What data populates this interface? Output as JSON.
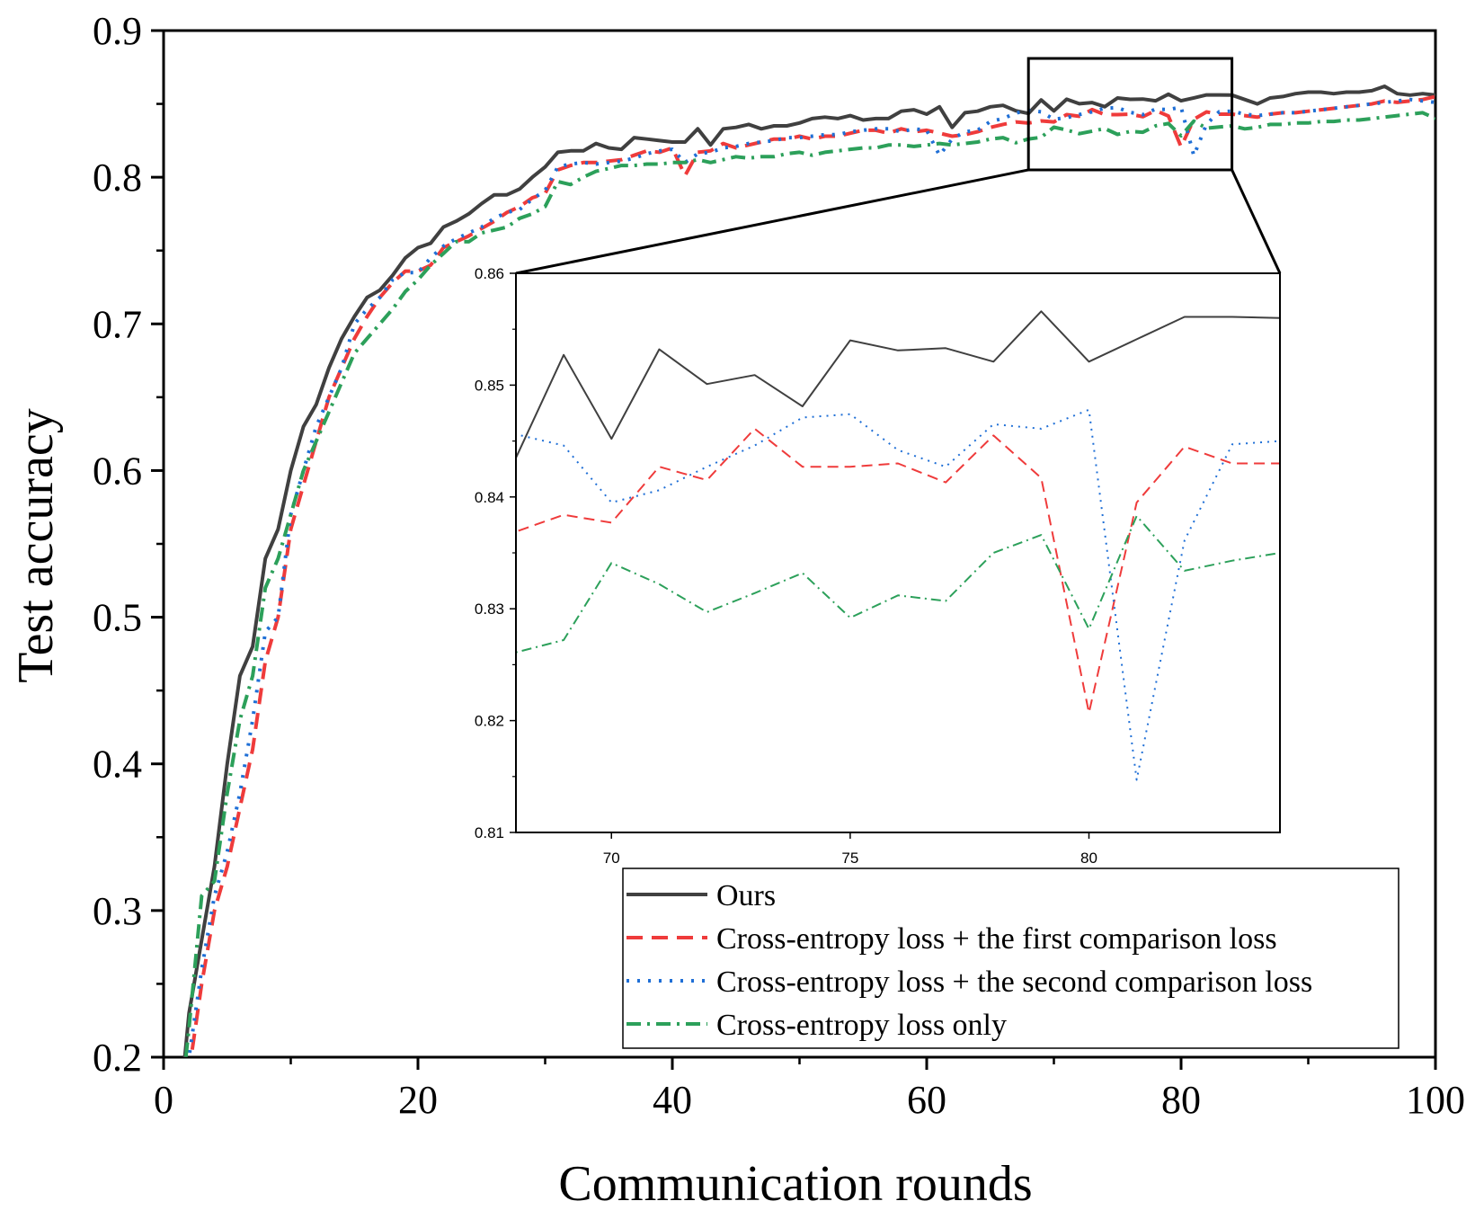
{
  "chart_data": {
    "type": "line",
    "xlabel": "Communication rounds",
    "ylabel": "Test accuracy",
    "xlim": [
      0,
      100
    ],
    "ylim": [
      0.2,
      0.9
    ],
    "x_ticks": [
      0,
      20,
      40,
      60,
      80,
      100
    ],
    "y_ticks": [
      0.2,
      0.3,
      0.4,
      0.5,
      0.6,
      0.7,
      0.8,
      0.9
    ],
    "x_tick_labels": [
      "0",
      "20",
      "40",
      "60",
      "80",
      "100"
    ],
    "y_tick_labels": [
      "0.2",
      "0.3",
      "0.4",
      "0.5",
      "0.6",
      "0.7",
      "0.8",
      "0.9"
    ],
    "grid": false,
    "legend_position": "bottom-right",
    "series": [
      {
        "name": "Ours",
        "color": "#404040",
        "style": "solid",
        "x": [
          1,
          2,
          3,
          4,
          5,
          6,
          7,
          8,
          9,
          10,
          11,
          12,
          13,
          14,
          15,
          16,
          17,
          18,
          19,
          20,
          21,
          22,
          23,
          24,
          25,
          26,
          27,
          28,
          29,
          30,
          31,
          32,
          33,
          34,
          35,
          36,
          37,
          38,
          39,
          40,
          41,
          42,
          43,
          44,
          45,
          46,
          47,
          48,
          49,
          50,
          51,
          52,
          53,
          54,
          55,
          56,
          57,
          58,
          59,
          60,
          61,
          62,
          63,
          64,
          65,
          66,
          67,
          68,
          69,
          70,
          71,
          72,
          73,
          74,
          75,
          76,
          77,
          78,
          79,
          80,
          81,
          82,
          83,
          84,
          85,
          86,
          87,
          88,
          89,
          90,
          91,
          92,
          93,
          94,
          95,
          96,
          97,
          98,
          99,
          100
        ],
        "values": [
          0.14,
          0.23,
          0.28,
          0.33,
          0.4,
          0.46,
          0.48,
          0.54,
          0.56,
          0.6,
          0.63,
          0.645,
          0.67,
          0.69,
          0.705,
          0.718,
          0.723,
          0.733,
          0.745,
          0.752,
          0.755,
          0.766,
          0.77,
          0.775,
          0.782,
          0.788,
          0.788,
          0.792,
          0.8,
          0.807,
          0.817,
          0.818,
          0.818,
          0.823,
          0.82,
          0.819,
          0.827,
          0.826,
          0.825,
          0.824,
          0.824,
          0.833,
          0.822,
          0.833,
          0.834,
          0.836,
          0.833,
          0.835,
          0.835,
          0.837,
          0.84,
          0.841,
          0.84,
          0.842,
          0.839,
          0.84,
          0.84,
          0.845,
          0.846,
          0.843,
          0.848,
          0.834,
          0.844,
          0.845,
          0.848,
          0.849,
          0.8453,
          0.8435,
          0.8527,
          0.8452,
          0.8532,
          0.8501,
          0.8509,
          0.8481,
          0.854,
          0.8531,
          0.8533,
          0.8521,
          0.8566,
          0.8521,
          0.8541,
          0.8561,
          0.8561,
          0.856,
          0.853,
          0.85,
          0.854,
          0.855,
          0.857,
          0.858,
          0.858,
          0.857,
          0.858,
          0.858,
          0.859,
          0.862,
          0.857,
          0.856,
          0.857,
          0.856
        ]
      },
      {
        "name": "Cross-entropy loss + the first comparison loss",
        "color": "#ef3b3b",
        "style": "dashed",
        "x": [
          1,
          2,
          3,
          4,
          5,
          6,
          7,
          8,
          9,
          10,
          11,
          12,
          13,
          14,
          15,
          16,
          17,
          18,
          19,
          20,
          21,
          22,
          23,
          24,
          25,
          26,
          27,
          28,
          29,
          30,
          31,
          32,
          33,
          34,
          35,
          36,
          37,
          38,
          39,
          40,
          41,
          42,
          43,
          44,
          45,
          46,
          47,
          48,
          49,
          50,
          51,
          52,
          53,
          54,
          55,
          56,
          57,
          58,
          59,
          60,
          61,
          62,
          63,
          64,
          65,
          66,
          67,
          68,
          69,
          70,
          71,
          72,
          73,
          74,
          75,
          76,
          77,
          78,
          79,
          80,
          81,
          82,
          83,
          84,
          85,
          86,
          87,
          88,
          89,
          90,
          91,
          92,
          93,
          94,
          95,
          96,
          97,
          98,
          99,
          100
        ],
        "values": [
          0.12,
          0.19,
          0.25,
          0.3,
          0.33,
          0.37,
          0.41,
          0.47,
          0.5,
          0.56,
          0.59,
          0.62,
          0.65,
          0.67,
          0.69,
          0.705,
          0.718,
          0.728,
          0.736,
          0.736,
          0.74,
          0.752,
          0.756,
          0.76,
          0.765,
          0.77,
          0.776,
          0.78,
          0.786,
          0.789,
          0.805,
          0.808,
          0.81,
          0.81,
          0.811,
          0.812,
          0.815,
          0.818,
          0.817,
          0.82,
          0.801,
          0.817,
          0.818,
          0.823,
          0.82,
          0.822,
          0.824,
          0.826,
          0.826,
          0.828,
          0.826,
          0.828,
          0.828,
          0.83,
          0.832,
          0.832,
          0.83,
          0.833,
          0.831,
          0.832,
          0.83,
          0.828,
          0.829,
          0.831,
          0.834,
          0.836,
          0.8377,
          0.8369,
          0.8384,
          0.8377,
          0.8427,
          0.8415,
          0.8461,
          0.8427,
          0.8427,
          0.843,
          0.8413,
          0.8455,
          0.8417,
          0.8207,
          0.8395,
          0.8445,
          0.843,
          0.843,
          0.842,
          0.841,
          0.843,
          0.844,
          0.844,
          0.845,
          0.846,
          0.847,
          0.848,
          0.849,
          0.85,
          0.852,
          0.851,
          0.852,
          0.853,
          0.855
        ]
      },
      {
        "name": "Cross-entropy loss + the second comparison loss",
        "color": "#1f6fd6",
        "style": "dotted",
        "x": [
          1,
          2,
          3,
          4,
          5,
          6,
          7,
          8,
          9,
          10,
          11,
          12,
          13,
          14,
          15,
          16,
          17,
          18,
          19,
          20,
          21,
          22,
          23,
          24,
          25,
          26,
          27,
          28,
          29,
          30,
          31,
          32,
          33,
          34,
          35,
          36,
          37,
          38,
          39,
          40,
          41,
          42,
          43,
          44,
          45,
          46,
          47,
          48,
          49,
          50,
          51,
          52,
          53,
          54,
          55,
          56,
          57,
          58,
          59,
          60,
          61,
          62,
          63,
          64,
          65,
          66,
          67,
          68,
          69,
          70,
          71,
          72,
          73,
          74,
          75,
          76,
          77,
          78,
          79,
          80,
          81,
          82,
          83,
          84,
          85,
          86,
          87,
          88,
          89,
          90,
          91,
          92,
          93,
          94,
          95,
          96,
          97,
          98,
          99,
          100
        ],
        "values": [
          0.13,
          0.2,
          0.26,
          0.31,
          0.34,
          0.38,
          0.43,
          0.49,
          0.5,
          0.57,
          0.6,
          0.63,
          0.65,
          0.67,
          0.7,
          0.71,
          0.718,
          0.73,
          0.735,
          0.735,
          0.745,
          0.753,
          0.758,
          0.762,
          0.766,
          0.772,
          0.776,
          0.778,
          0.785,
          0.791,
          0.807,
          0.809,
          0.81,
          0.809,
          0.81,
          0.811,
          0.813,
          0.816,
          0.818,
          0.819,
          0.81,
          0.816,
          0.817,
          0.82,
          0.821,
          0.823,
          0.824,
          0.825,
          0.827,
          0.827,
          0.828,
          0.829,
          0.829,
          0.831,
          0.832,
          0.833,
          0.833,
          0.831,
          0.833,
          0.832,
          0.815,
          0.826,
          0.831,
          0.832,
          0.838,
          0.84,
          0.8437,
          0.8456,
          0.8446,
          0.8395,
          0.8406,
          0.8427,
          0.8446,
          0.8471,
          0.8474,
          0.8442,
          0.8427,
          0.8465,
          0.8461,
          0.8478,
          0.8147,
          0.8361,
          0.8447,
          0.845,
          0.843,
          0.842,
          0.843,
          0.844,
          0.844,
          0.845,
          0.846,
          0.847,
          0.848,
          0.849,
          0.85,
          0.851,
          0.852,
          0.853,
          0.852,
          0.851
        ]
      },
      {
        "name": "Cross-entropy loss only",
        "color": "#2ca05a",
        "style": "dashdot",
        "x": [
          1,
          2,
          3,
          4,
          5,
          6,
          7,
          8,
          9,
          10,
          11,
          12,
          13,
          14,
          15,
          16,
          17,
          18,
          19,
          20,
          21,
          22,
          23,
          24,
          25,
          26,
          27,
          28,
          29,
          30,
          31,
          32,
          33,
          34,
          35,
          36,
          37,
          38,
          39,
          40,
          41,
          42,
          43,
          44,
          45,
          46,
          47,
          48,
          49,
          50,
          51,
          52,
          53,
          54,
          55,
          56,
          57,
          58,
          59,
          60,
          61,
          62,
          63,
          64,
          65,
          66,
          67,
          68,
          69,
          70,
          71,
          72,
          73,
          74,
          75,
          76,
          77,
          78,
          79,
          80,
          81,
          82,
          83,
          84,
          85,
          86,
          87,
          88,
          89,
          90,
          91,
          92,
          93,
          94,
          95,
          96,
          97,
          98,
          99,
          100
        ],
        "values": [
          0.14,
          0.22,
          0.31,
          0.32,
          0.38,
          0.43,
          0.46,
          0.52,
          0.54,
          0.57,
          0.6,
          0.62,
          0.64,
          0.66,
          0.68,
          0.69,
          0.7,
          0.71,
          0.722,
          0.73,
          0.74,
          0.748,
          0.756,
          0.756,
          0.762,
          0.764,
          0.766,
          0.772,
          0.775,
          0.78,
          0.797,
          0.795,
          0.8,
          0.804,
          0.806,
          0.808,
          0.808,
          0.809,
          0.809,
          0.81,
          0.81,
          0.812,
          0.81,
          0.812,
          0.814,
          0.813,
          0.814,
          0.814,
          0.816,
          0.817,
          0.815,
          0.817,
          0.818,
          0.819,
          0.82,
          0.82,
          0.822,
          0.822,
          0.821,
          0.822,
          0.823,
          0.822,
          0.823,
          0.824,
          0.826,
          0.827,
          0.8235,
          0.8261,
          0.8272,
          0.8341,
          0.8322,
          0.8297,
          0.8314,
          0.8332,
          0.8292,
          0.8312,
          0.8307,
          0.835,
          0.8366,
          0.8282,
          0.8383,
          0.8334,
          0.8343,
          0.835,
          0.833,
          0.834,
          0.836,
          0.836,
          0.837,
          0.837,
          0.838,
          0.838,
          0.839,
          0.839,
          0.84,
          0.841,
          0.842,
          0.843,
          0.844,
          0.84
        ]
      }
    ],
    "inset": {
      "xlim": [
        68,
        84
      ],
      "ylim": [
        0.81,
        0.86
      ],
      "x_ticks": [
        70,
        75,
        80
      ],
      "y_ticks": [
        0.81,
        0.82,
        0.83,
        0.84,
        0.85,
        0.86
      ],
      "x_tick_labels": [
        "70",
        "75",
        "80"
      ],
      "y_tick_labels": [
        "0.81",
        "0.82",
        "0.83",
        "0.84",
        "0.85",
        "0.86"
      ],
      "zoom_region": {
        "x": [
          68,
          84
        ],
        "y": [
          0.805,
          0.881
        ]
      }
    }
  }
}
